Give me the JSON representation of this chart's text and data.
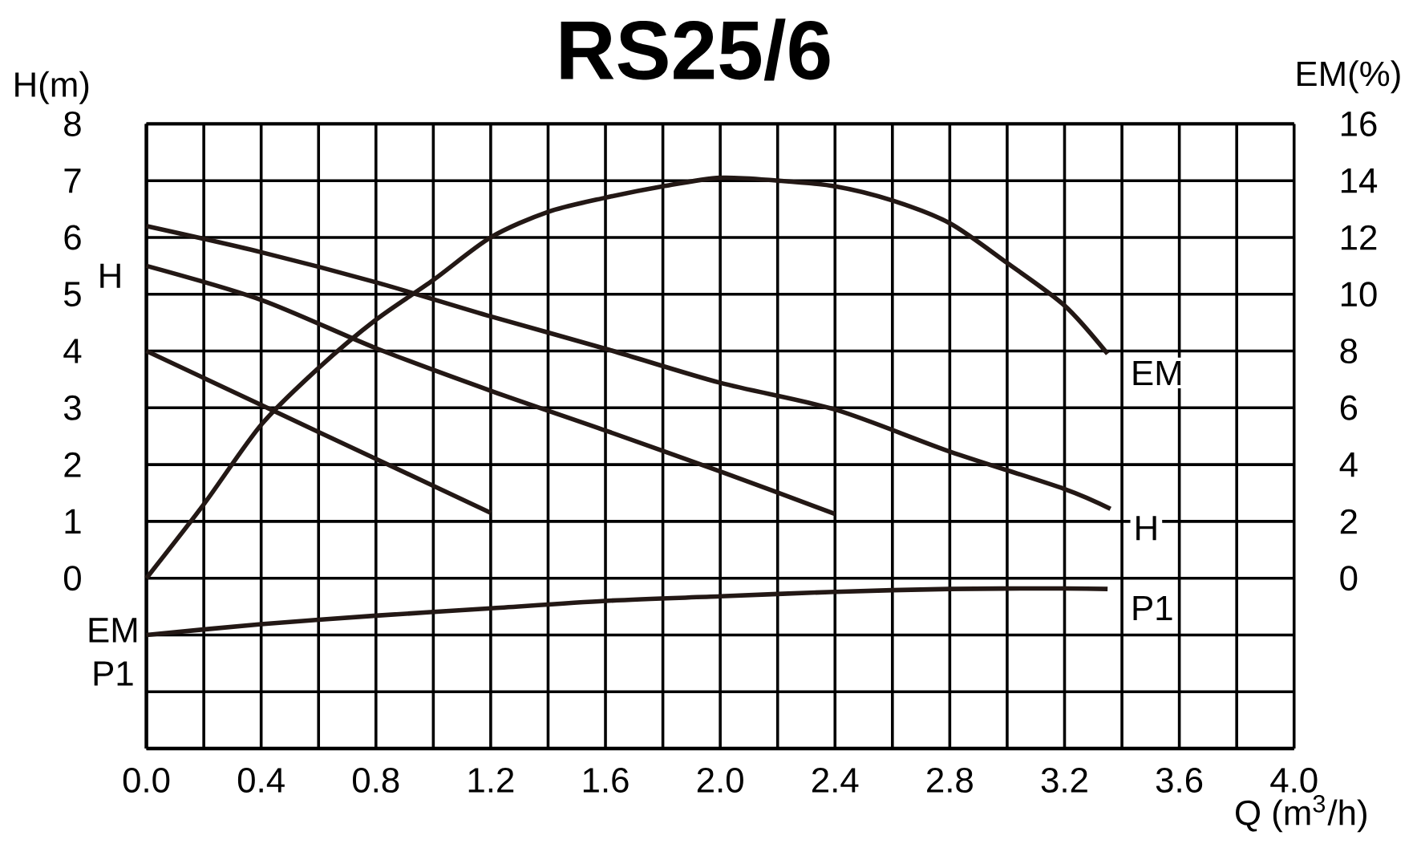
{
  "chart_data": {
    "type": "line",
    "title": "RS25/6",
    "xlabel": "Q (m$^{3}$/h)",
    "ylabel": "H(m)",
    "y2label": "EM(%)",
    "annotations": [
      "H",
      "EM",
      "P1"
    ],
    "xlim": [
      0,
      4.0
    ],
    "ylim": [
      -3,
      8
    ],
    "y2lim": [
      -6,
      16
    ],
    "xticks": [
      {
        "value": 0,
        "label": "0.0"
      },
      {
        "value": 0.2,
        "label": null
      },
      {
        "value": 0.4,
        "label": "0.4"
      },
      {
        "value": 0.6,
        "label": null
      },
      {
        "value": 0.8,
        "label": "0.8"
      },
      {
        "value": 1.0,
        "label": null
      },
      {
        "value": 1.2,
        "label": "1.2"
      },
      {
        "value": 1.4,
        "label": null
      },
      {
        "value": 1.6,
        "label": "1.6"
      },
      {
        "value": 1.8,
        "label": null
      },
      {
        "value": 2.0,
        "label": "2.0"
      },
      {
        "value": 2.2,
        "label": null
      },
      {
        "value": 2.4,
        "label": "2.4"
      },
      {
        "value": 2.6,
        "label": null
      },
      {
        "value": 2.8,
        "label": "2.8"
      },
      {
        "value": 3.0,
        "label": null
      },
      {
        "value": 3.2,
        "label": "3.2"
      },
      {
        "value": 3.4,
        "label": null
      },
      {
        "value": 3.6,
        "label": "3.6"
      },
      {
        "value": 3.8,
        "label": null
      },
      {
        "value": 4.0,
        "label": "4.0"
      }
    ],
    "yticks": [
      {
        "value": -3,
        "label": null
      },
      {
        "value": -2,
        "label": null
      },
      {
        "value": -1,
        "label": null
      },
      0,
      1,
      2,
      3,
      4,
      5,
      6,
      7,
      8
    ],
    "y2ticks": [
      0,
      2,
      4,
      6,
      8,
      10,
      12,
      14,
      16
    ],
    "grid": true,
    "marker": "none",
    "line_style": "solid",
    "series": [
      {
        "color": "#231815",
        "x": [
          0,
          0.4,
          0.8,
          1.2
        ],
        "values": [
          4.0,
          3.05,
          2.1,
          1.15
        ]
      },
      {
        "color": "#231815",
        "x": [
          0,
          0.4,
          0.8,
          1.2,
          1.6,
          2.0,
          2.4
        ],
        "values": [
          5.5,
          4.9,
          4.05,
          3.3,
          2.6,
          1.88,
          1.13
        ]
      },
      {
        "name": "H",
        "color": "#231815",
        "x": [
          0,
          0.4,
          0.8,
          1.2,
          1.6,
          2.0,
          2.4,
          2.8,
          3.2,
          3.36
        ],
        "values": [
          6.2,
          5.74,
          5.21,
          4.61,
          4.04,
          3.44,
          2.97,
          2.23,
          1.57,
          1.22
        ]
      },
      {
        "name": "EM",
        "axis": "y2",
        "color": "#231815",
        "x": [
          0,
          0.2,
          0.4,
          0.6,
          0.8,
          1.0,
          1.2,
          1.4,
          1.6,
          1.8,
          2.0,
          2.2,
          2.4,
          2.6,
          2.8,
          3.0,
          3.2,
          3.35
        ],
        "values": [
          0,
          2.6,
          5.4,
          7.4,
          9.1,
          10.5,
          12.0,
          12.9,
          13.4,
          13.8,
          14.1,
          14.0,
          13.8,
          13.3,
          12.5,
          11.1,
          9.6,
          7.9
        ]
      },
      {
        "name": "P1",
        "color": "#231815",
        "x": [
          0,
          0.4,
          0.8,
          1.2,
          1.6,
          2.0,
          2.4,
          2.8,
          3.2,
          3.35
        ],
        "values": [
          -1.0,
          -0.81,
          -0.66,
          -0.53,
          -0.4,
          -0.32,
          -0.24,
          -0.19,
          -0.18,
          -0.19
        ]
      }
    ]
  }
}
